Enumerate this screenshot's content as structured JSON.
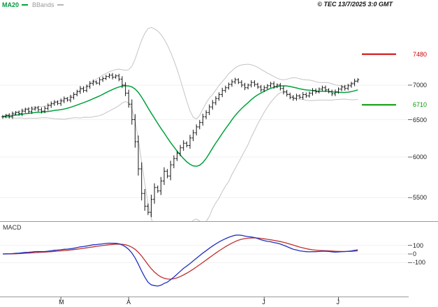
{
  "header": {
    "legend": {
      "ma20": "MA20",
      "bbands": "BBands"
    },
    "copyright": "© TEC 13/7/2025 3:0 GMT"
  },
  "panes": {
    "macd_label": "MACD"
  },
  "chart_data": {
    "type": "candlestick",
    "title": "",
    "price_axis": {
      "ticks": [
        7000,
        6500,
        6000,
        5500
      ]
    },
    "levels": {
      "resistance": {
        "value": 7480,
        "color": "#cc0000"
      },
      "support": {
        "value": 6710,
        "color": "#009900"
      }
    },
    "macd_axis": {
      "ticks": [
        100,
        0,
        -100
      ]
    },
    "x_axis": {
      "labels": [
        "M",
        "A",
        "J",
        "J"
      ],
      "label_bar_index": [
        18,
        39,
        81,
        104
      ]
    },
    "series": {
      "closes": [
        6540,
        6560,
        6545,
        6580,
        6600,
        6585,
        6620,
        6645,
        6615,
        6650,
        6665,
        6640,
        6620,
        6660,
        6700,
        6725,
        6750,
        6730,
        6765,
        6800,
        6780,
        6820,
        6860,
        6905,
        6950,
        6920,
        6980,
        7025,
        7050,
        7030,
        7080,
        7100,
        7130,
        7150,
        7120,
        7140,
        7090,
        7000,
        6880,
        6720,
        6500,
        6200,
        5850,
        5550,
        5400,
        5330,
        5480,
        5620,
        5580,
        5700,
        5820,
        5760,
        5900,
        5980,
        6050,
        6120,
        6180,
        6150,
        6250,
        6320,
        6400,
        6460,
        6540,
        6600,
        6680,
        6740,
        6800,
        6860,
        6920,
        6960,
        7010,
        7050,
        7080,
        7040,
        7000,
        6960,
        7000,
        7040,
        7010,
        6970,
        6930,
        6960,
        6990,
        7020,
        6980,
        7000,
        6950,
        6900,
        6860,
        6820,
        6800,
        6840,
        6820,
        6860,
        6840,
        6880,
        6920,
        6900,
        6940,
        6960,
        6930,
        6900,
        6870,
        6900,
        6940,
        6970,
        6950,
        6990,
        7020,
        7060,
        7080
      ]
    },
    "indicators": {
      "ma_period": 20,
      "bollinger_mult": 2,
      "macd_fast": 12,
      "macd_slow": 26,
      "macd_signal": 9
    },
    "colors": {
      "bars": "#1a1a1a",
      "ma": "#00a23c",
      "bands": "#c4c4c4",
      "macd_line": "#2030c0",
      "macd_signal": "#c03030"
    }
  }
}
